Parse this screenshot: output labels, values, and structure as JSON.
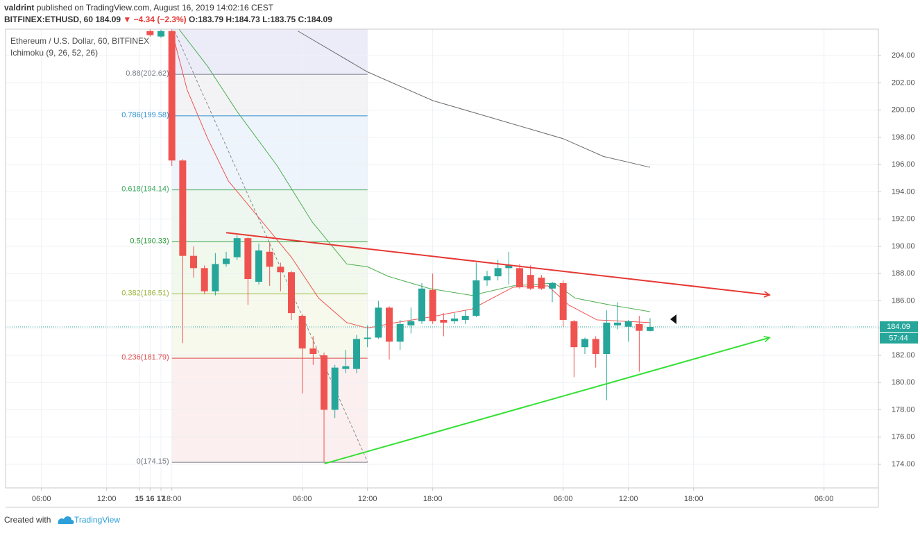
{
  "header": {
    "author": "valdrint",
    "published": "published on TradingView.com, August 16, 2019 14:02:16 CEST",
    "symbol": "BITFINEX:ETHUSD, 60",
    "price": "184.09",
    "change": "▼ −4.34 (−2.3%)",
    "ohlc": [
      "O:183.79",
      "H:184.73",
      "L:183.75",
      "C:184.09"
    ]
  },
  "footer": {
    "created": "Created with",
    "brand": "TradingView"
  },
  "chart_data": {
    "type": "candlestick",
    "legend": [
      "Ethereum / U.S. Dollar, 60, BITFINEX",
      "Ichimoku (9, 26, 52, 26)"
    ],
    "up_color": "#26a69a",
    "down_color": "#ef5350",
    "x": [
      16,
      17,
      18,
      19,
      20,
      21,
      22,
      23,
      24,
      25,
      26,
      27,
      28,
      29,
      30,
      31,
      32,
      33,
      34,
      35,
      36,
      37,
      38,
      39,
      40,
      41,
      42,
      43,
      44,
      45,
      46,
      47,
      48,
      49,
      50,
      51,
      52,
      53,
      54,
      55,
      56,
      57,
      58,
      59,
      60,
      61,
      62
    ],
    "open": [
      205.8,
      205.4,
      205.8,
      196.3,
      189.3,
      188.4,
      186.7,
      188.7,
      189.2,
      190.6,
      187.4,
      189.6,
      188.5,
      188.1,
      184.9,
      182.5,
      182.0,
      178.0,
      181.0,
      181.0,
      183.2,
      183.3,
      185.5,
      183.0,
      184.2,
      184.5,
      186.8,
      184.6,
      184.5,
      184.6,
      184.9,
      187.5,
      187.8,
      188.4,
      188.4,
      187.9,
      187.7,
      186.9,
      187.3,
      184.5,
      182.6,
      183.2,
      182.1,
      184.2,
      184.1,
      184.3,
      183.79
    ],
    "high": [
      206.0,
      205.9,
      206.5,
      196.4,
      190.0,
      188.6,
      189.5,
      189.6,
      190.8,
      190.7,
      190.2,
      190.3,
      188.8,
      188.2,
      185.0,
      183.4,
      182.2,
      181.3,
      182.4,
      183.5,
      184.2,
      186.0,
      185.6,
      184.6,
      185.5,
      187.3,
      188.0,
      185.1,
      185.1,
      185.3,
      188.8,
      188.2,
      189.0,
      189.6,
      188.7,
      188.6,
      187.9,
      187.4,
      187.5,
      184.6,
      183.3,
      183.4,
      185.3,
      185.9,
      184.6,
      184.9,
      184.73
    ],
    "low": [
      205.4,
      205.3,
      195.9,
      182.9,
      187.7,
      186.5,
      186.4,
      188.5,
      189.0,
      185.7,
      187.2,
      187.1,
      186.7,
      184.6,
      179.2,
      181.3,
      174.15,
      177.4,
      180.7,
      180.7,
      182.6,
      183.2,
      181.7,
      182.4,
      183.6,
      184.3,
      184.3,
      183.4,
      184.3,
      184.3,
      184.8,
      187.1,
      187.5,
      187.2,
      186.9,
      186.8,
      186.8,
      185.9,
      184.1,
      180.4,
      182.1,
      181.1,
      178.7,
      183.9,
      183.0,
      180.8,
      183.75
    ],
    "close": [
      205.5,
      205.8,
      196.3,
      189.3,
      188.4,
      186.7,
      188.7,
      189.1,
      190.6,
      187.6,
      189.7,
      188.5,
      188.1,
      185.1,
      182.5,
      182.1,
      178.0,
      181.1,
      181.2,
      183.2,
      183.3,
      185.5,
      183.0,
      184.3,
      184.5,
      186.9,
      184.5,
      184.4,
      184.7,
      184.9,
      187.5,
      187.8,
      188.4,
      188.6,
      187.0,
      186.9,
      186.9,
      187.3,
      184.6,
      182.6,
      183.2,
      182.1,
      184.4,
      184.4,
      184.5,
      183.8,
      184.09
    ],
    "xlim": [
      2.7,
      83
    ],
    "ylim": [
      172.27,
      205.94
    ],
    "xticks": [
      {
        "value": 6,
        "label": "06:00"
      },
      {
        "value": 12,
        "label": "12:00"
      },
      {
        "value": 18,
        "label": "18:00"
      },
      15,
      {
        "value": 30,
        "label": "06:00"
      },
      {
        "value": 36,
        "label": "12:00"
      },
      {
        "value": 42,
        "label": "18:00"
      },
      16,
      {
        "value": 54,
        "label": "06:00"
      },
      {
        "value": 60,
        "label": "12:00"
      },
      {
        "value": 66,
        "label": "18:00"
      },
      17,
      {
        "value": 78,
        "label": "06:00"
      }
    ],
    "yticks": [
      {
        "value": 174,
        "label": "174.00"
      },
      {
        "value": 176,
        "label": "176.00"
      },
      {
        "value": 178,
        "label": "178.00"
      },
      {
        "value": 180,
        "label": "180.00"
      },
      {
        "value": 182,
        "label": "182.00"
      },
      {
        "value": 184,
        "label": "184.00"
      },
      {
        "value": 186,
        "label": "186.00"
      },
      {
        "value": 188,
        "label": "188.00"
      },
      {
        "value": 190,
        "label": "190.00"
      },
      {
        "value": 192,
        "label": "192.00"
      },
      {
        "value": 194,
        "label": "194.00"
      },
      {
        "value": 196,
        "label": "196.00"
      },
      {
        "value": 198,
        "label": "198.00"
      },
      {
        "value": 200,
        "label": "200.00"
      },
      {
        "value": 202,
        "label": "202.00"
      },
      {
        "value": 204,
        "label": "204.00"
      }
    ],
    "grid": true,
    "last_price": {
      "value": 184.09,
      "label": "184.09",
      "countdown": "57:44",
      "color": "#26a69a"
    },
    "fib": {
      "x": [
        18,
        36
      ],
      "levels": [
        {
          "label": "0.88(202.62)",
          "value": 202.62,
          "color": "#787b86",
          "band_color": "#ececf8"
        },
        {
          "label": "0.786(199.58)",
          "value": 199.58,
          "color": "#2f8fd0",
          "band_color": "#f3f3f5"
        },
        {
          "label": "0.618(194.14)",
          "value": 194.14,
          "color": "#3aaa5a",
          "band_color": "#eef4fb"
        },
        {
          "label": "0.5(190.33)",
          "value": 190.33,
          "color": "#2e9e3e",
          "band_color": "#eef7ef"
        },
        {
          "label": "0.382(186.51)",
          "value": 186.51,
          "color": "#9bb53c",
          "band_color": "#f1f8ec"
        },
        {
          "label": "0.236(181.79)",
          "value": 181.79,
          "color": "#e04b4b",
          "band_color": "#f6f9ec"
        },
        {
          "label": "0(174.15)",
          "value": 174.15,
          "color": "#787b86",
          "band_color": "#fbefef"
        }
      ]
    },
    "lines": [
      {
        "color": "#6b6b6b",
        "width": 1,
        "x": [
          29.6,
          36,
          42,
          48,
          54,
          57.7,
          62
        ],
        "y": [
          205.8,
          202.8,
          200.7,
          199.3,
          197.9,
          196.6,
          195.8
        ]
      },
      {
        "color": "#4caf50",
        "width": 1,
        "x": [
          18.6,
          21.3,
          24,
          27.7,
          30.9,
          34.1,
          36,
          37.9,
          41.7,
          45.6,
          49.4,
          53.2,
          55.1,
          58.3,
          62
        ],
        "y": [
          206,
          203.2,
          199.9,
          195.9,
          191.8,
          188.7,
          188.5,
          187.8,
          186.9,
          186.4,
          187.1,
          187.3,
          186.2,
          185.7,
          185.2
        ]
      },
      {
        "color": "#ef5350",
        "width": 1,
        "x": [
          18.1,
          19.4,
          21.3,
          23.2,
          25.8,
          29,
          31.5,
          34.1,
          36,
          38.6,
          41.7,
          45.6,
          49.4,
          52.6,
          54.5,
          57.1,
          59.6,
          62
        ],
        "y": [
          205.5,
          201.5,
          197.9,
          194.8,
          192.3,
          189.2,
          186.2,
          184.4,
          184.0,
          184.4,
          184.8,
          185.4,
          187.0,
          187.1,
          185.7,
          184.6,
          184.5,
          184.4
        ]
      },
      {
        "color": "#888888",
        "width": 1,
        "dash": true,
        "x": [
          18.25,
          36
        ],
        "y": [
          205.8,
          174.2
        ]
      },
      {
        "color": "#e53935",
        "width": 2,
        "arrow": true,
        "x": [
          23,
          73
        ],
        "y": [
          191.0,
          186.43
        ]
      },
      {
        "color": "#33e033",
        "width": 2,
        "arrow": true,
        "x": [
          32.04,
          73
        ],
        "y": [
          174.05,
          183.3
        ]
      }
    ]
  }
}
